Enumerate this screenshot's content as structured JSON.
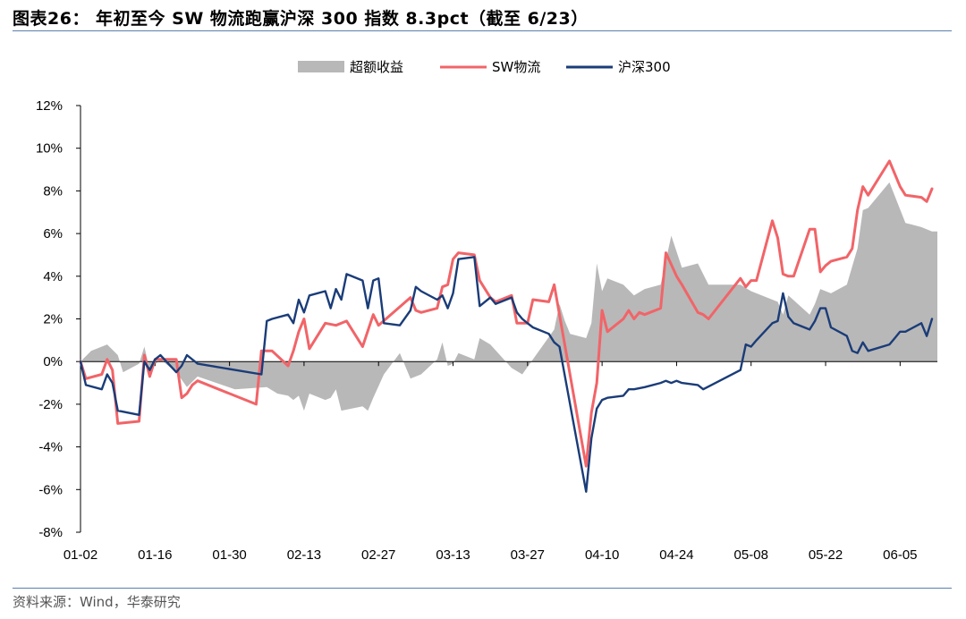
{
  "header": {
    "title": "图表26：  年初至今 SW 物流跑赢沪深 300 指数 8.3pct（截至 6/23）"
  },
  "footer": {
    "source": "资料来源：Wind，华泰研究"
  },
  "colors": {
    "excess": "#b8b8b8",
    "sw_logistics": "#f16468",
    "hs300": "#1a3c78",
    "rule": "#5a7fb0"
  },
  "chart_data": {
    "type": "line",
    "title": "图表26：  年初至今 SW 物流跑赢沪深 300 指数 8.3pct（截至 6/23）",
    "x_tick_labels": [
      "01-02",
      "01-16",
      "01-30",
      "02-13",
      "02-27",
      "03-13",
      "03-27",
      "04-10",
      "04-24",
      "05-08",
      "05-22",
      "06-05"
    ],
    "y_tick_labels": [
      "12%",
      "10%",
      "8%",
      "6%",
      "4%",
      "2%",
      "0%",
      "-2%",
      "-4%",
      "-6%",
      "-8%"
    ],
    "ylim": [
      -8,
      12
    ],
    "y_unit": "%",
    "grid": false,
    "legend_position": "top",
    "legend": [
      "超额收益",
      "SW物流",
      "沪深300"
    ],
    "series": [
      {
        "name": "超额收益",
        "type": "area",
        "points": [
          [
            "01-02",
            0
          ],
          [
            "01-04",
            0.5
          ],
          [
            "01-07",
            0.8
          ],
          [
            "01-09",
            0.3
          ],
          [
            "01-10",
            -0.5
          ],
          [
            "01-13",
            -0.1
          ],
          [
            "01-14",
            0.7
          ],
          [
            "01-15",
            -0.4
          ],
          [
            "01-17",
            0.1
          ],
          [
            "01-20",
            -0.5
          ],
          [
            "01-22",
            -1.2
          ],
          [
            "01-24",
            -0.7
          ],
          [
            "01-31",
            -1.3
          ],
          [
            "02-06",
            -1.2
          ],
          [
            "02-08",
            -1.5
          ],
          [
            "02-10",
            -1.6
          ],
          [
            "02-11",
            -1.8
          ],
          [
            "02-12",
            -1.6
          ],
          [
            "02-13",
            -2.3
          ],
          [
            "02-14",
            -1.5
          ],
          [
            "02-17",
            -1.8
          ],
          [
            "02-18",
            -1.7
          ],
          [
            "02-19",
            -1.3
          ],
          [
            "02-20",
            -2.3
          ],
          [
            "02-24",
            -2.1
          ],
          [
            "02-25",
            -2.3
          ],
          [
            "02-26",
            -1.7
          ],
          [
            "02-28",
            -0.6
          ],
          [
            "03-03",
            0.4
          ],
          [
            "03-05",
            -0.8
          ],
          [
            "03-07",
            -0.6
          ],
          [
            "03-10",
            0.1
          ],
          [
            "03-11",
            0.9
          ],
          [
            "03-12",
            -0.2
          ],
          [
            "03-13",
            -0.1
          ],
          [
            "03-14",
            0.4
          ],
          [
            "03-17",
            0.1
          ],
          [
            "03-18",
            1.1
          ],
          [
            "03-20",
            0.8
          ],
          [
            "03-24",
            -0.3
          ],
          [
            "03-26",
            -0.6
          ],
          [
            "03-28",
            0.1
          ],
          [
            "04-01",
            1.5
          ],
          [
            "04-02",
            2.7
          ],
          [
            "04-03",
            1.9
          ],
          [
            "04-04",
            1.3
          ],
          [
            "04-07",
            1.1
          ],
          [
            "04-08",
            1.8
          ],
          [
            "04-09",
            4.6
          ],
          [
            "04-10",
            3.3
          ],
          [
            "04-11",
            3.9
          ],
          [
            "04-14",
            3.6
          ],
          [
            "04-16",
            3.1
          ],
          [
            "04-18",
            3.4
          ],
          [
            "04-21",
            3.6
          ],
          [
            "04-23",
            5.9
          ],
          [
            "04-25",
            4.4
          ],
          [
            "04-28",
            4.6
          ],
          [
            "04-30",
            3.6
          ],
          [
            "05-06",
            3.6
          ],
          [
            "05-08",
            3.3
          ],
          [
            "05-13",
            2.8
          ],
          [
            "05-14",
            2.2
          ],
          [
            "05-15",
            3.1
          ],
          [
            "05-19",
            2.2
          ],
          [
            "05-20",
            2.7
          ],
          [
            "05-21",
            3.4
          ],
          [
            "05-23",
            3.2
          ],
          [
            "05-26",
            3.6
          ],
          [
            "05-28",
            5.3
          ],
          [
            "05-29",
            7.1
          ],
          [
            "05-30",
            7.2
          ],
          [
            "06-03",
            8.4
          ],
          [
            "06-06",
            6.5
          ],
          [
            "06-09",
            6.3
          ],
          [
            "06-11",
            6.1
          ],
          [
            "06-12",
            6.1
          ]
        ]
      },
      {
        "name": "SW物流",
        "type": "line",
        "points": [
          [
            "01-02",
            0
          ],
          [
            "01-03",
            -0.8
          ],
          [
            "01-06",
            -0.6
          ],
          [
            "01-07",
            0.1
          ],
          [
            "01-08",
            -0.4
          ],
          [
            "01-09",
            -2.9
          ],
          [
            "01-13",
            -2.8
          ],
          [
            "01-14",
            0.3
          ],
          [
            "01-15",
            -0.7
          ],
          [
            "01-16",
            0.1
          ],
          [
            "01-20",
            0.1
          ],
          [
            "01-21",
            -1.7
          ],
          [
            "01-22",
            -1.5
          ],
          [
            "01-23",
            -1.1
          ],
          [
            "01-24",
            -0.9
          ],
          [
            "02-04",
            -2.0
          ],
          [
            "02-05",
            0.5
          ],
          [
            "02-07",
            0.5
          ],
          [
            "02-10",
            -0.2
          ],
          [
            "02-11",
            0.5
          ],
          [
            "02-12",
            1.4
          ],
          [
            "02-13",
            2.0
          ],
          [
            "02-14",
            0.6
          ],
          [
            "02-17",
            1.8
          ],
          [
            "02-19",
            1.7
          ],
          [
            "02-21",
            1.9
          ],
          [
            "02-24",
            0.7
          ],
          [
            "02-26",
            2.2
          ],
          [
            "02-27",
            1.7
          ],
          [
            "03-05",
            3.0
          ],
          [
            "03-06",
            2.4
          ],
          [
            "03-07",
            2.3
          ],
          [
            "03-10",
            2.5
          ],
          [
            "03-11",
            3.5
          ],
          [
            "03-12",
            3.6
          ],
          [
            "03-13",
            4.8
          ],
          [
            "03-14",
            5.1
          ],
          [
            "03-17",
            5.0
          ],
          [
            "03-18",
            3.8
          ],
          [
            "03-20",
            3.0
          ],
          [
            "03-21",
            2.8
          ],
          [
            "03-24",
            3.1
          ],
          [
            "03-25",
            1.8
          ],
          [
            "03-27",
            1.8
          ],
          [
            "03-28",
            2.9
          ],
          [
            "03-31",
            2.8
          ],
          [
            "04-01",
            3.6
          ],
          [
            "04-07",
            -4.9
          ],
          [
            "04-08",
            -2.4
          ],
          [
            "04-09",
            -1.0
          ],
          [
            "04-10",
            2.4
          ],
          [
            "04-11",
            1.4
          ],
          [
            "04-14",
            2.0
          ],
          [
            "04-15",
            2.4
          ],
          [
            "04-16",
            2.0
          ],
          [
            "04-17",
            2.3
          ],
          [
            "04-18",
            2.2
          ],
          [
            "04-21",
            2.5
          ],
          [
            "04-22",
            5.1
          ],
          [
            "04-24",
            4.0
          ],
          [
            "04-25",
            3.6
          ],
          [
            "04-28",
            2.3
          ],
          [
            "04-29",
            2.2
          ],
          [
            "04-30",
            2.0
          ],
          [
            "05-06",
            3.9
          ],
          [
            "05-07",
            3.5
          ],
          [
            "05-08",
            3.8
          ],
          [
            "05-09",
            3.8
          ],
          [
            "05-12",
            6.6
          ],
          [
            "05-13",
            5.8
          ],
          [
            "05-14",
            4.1
          ],
          [
            "05-15",
            4.0
          ],
          [
            "05-16",
            4.0
          ],
          [
            "05-19",
            6.2
          ],
          [
            "05-20",
            6.2
          ],
          [
            "05-21",
            4.2
          ],
          [
            "05-22",
            4.5
          ],
          [
            "05-23",
            4.7
          ],
          [
            "05-26",
            4.9
          ],
          [
            "05-27",
            5.3
          ],
          [
            "05-28",
            7.1
          ],
          [
            "05-29",
            8.2
          ],
          [
            "05-30",
            7.8
          ],
          [
            "06-03",
            9.4
          ],
          [
            "06-05",
            8.2
          ],
          [
            "06-06",
            7.8
          ],
          [
            "06-09",
            7.7
          ],
          [
            "06-10",
            7.5
          ],
          [
            "06-11",
            8.1
          ]
        ]
      },
      {
        "name": "沪深300",
        "type": "line",
        "points": [
          [
            "01-02",
            0
          ],
          [
            "01-03",
            -1.1
          ],
          [
            "01-06",
            -1.3
          ],
          [
            "01-07",
            -0.6
          ],
          [
            "01-08",
            -1.0
          ],
          [
            "01-09",
            -2.3
          ],
          [
            "01-13",
            -2.5
          ],
          [
            "01-14",
            0
          ],
          [
            "01-15",
            -0.4
          ],
          [
            "01-16",
            0.1
          ],
          [
            "01-17",
            0.3
          ],
          [
            "01-20",
            -0.5
          ],
          [
            "01-21",
            -0.2
          ],
          [
            "01-22",
            0.3
          ],
          [
            "01-24",
            -0.1
          ],
          [
            "02-05",
            -0.6
          ],
          [
            "02-06",
            1.9
          ],
          [
            "02-07",
            2.0
          ],
          [
            "02-10",
            2.2
          ],
          [
            "02-11",
            1.8
          ],
          [
            "02-12",
            2.9
          ],
          [
            "02-13",
            2.3
          ],
          [
            "02-14",
            3.1
          ],
          [
            "02-17",
            3.3
          ],
          [
            "02-18",
            2.5
          ],
          [
            "02-19",
            3.4
          ],
          [
            "02-20",
            2.9
          ],
          [
            "02-21",
            4.1
          ],
          [
            "02-24",
            3.8
          ],
          [
            "02-25",
            2.5
          ],
          [
            "02-26",
            3.8
          ],
          [
            "02-27",
            3.9
          ],
          [
            "02-28",
            1.8
          ],
          [
            "03-03",
            1.7
          ],
          [
            "03-05",
            2.4
          ],
          [
            "03-06",
            3.5
          ],
          [
            "03-07",
            3.3
          ],
          [
            "03-10",
            2.9
          ],
          [
            "03-11",
            3.1
          ],
          [
            "03-12",
            2.5
          ],
          [
            "03-13",
            3.2
          ],
          [
            "03-14",
            4.8
          ],
          [
            "03-17",
            4.9
          ],
          [
            "03-18",
            2.6
          ],
          [
            "03-20",
            3.0
          ],
          [
            "03-21",
            2.7
          ],
          [
            "03-24",
            3.0
          ],
          [
            "03-25",
            2.3
          ],
          [
            "03-26",
            2.0
          ],
          [
            "03-27",
            1.8
          ],
          [
            "03-28",
            1.6
          ],
          [
            "03-31",
            1.3
          ],
          [
            "04-01",
            0.9
          ],
          [
            "04-02",
            0.7
          ],
          [
            "04-07",
            -6.1
          ],
          [
            "04-08",
            -3.6
          ],
          [
            "04-09",
            -2.2
          ],
          [
            "04-10",
            -1.8
          ],
          [
            "04-11",
            -1.7
          ],
          [
            "04-14",
            -1.6
          ],
          [
            "04-15",
            -1.3
          ],
          [
            "04-16",
            -1.3
          ],
          [
            "04-18",
            -1.2
          ],
          [
            "04-21",
            -1.0
          ],
          [
            "04-22",
            -0.9
          ],
          [
            "04-23",
            -1.0
          ],
          [
            "04-24",
            -0.9
          ],
          [
            "04-25",
            -1.0
          ],
          [
            "04-28",
            -1.1
          ],
          [
            "04-29",
            -1.3
          ],
          [
            "05-06",
            -0.4
          ],
          [
            "05-07",
            0.8
          ],
          [
            "05-08",
            0.7
          ],
          [
            "05-09",
            1.0
          ],
          [
            "05-12",
            1.8
          ],
          [
            "05-13",
            1.9
          ],
          [
            "05-14",
            3.2
          ],
          [
            "05-15",
            2.1
          ],
          [
            "05-16",
            1.8
          ],
          [
            "05-19",
            1.5
          ],
          [
            "05-20",
            1.9
          ],
          [
            "05-21",
            2.5
          ],
          [
            "05-22",
            2.5
          ],
          [
            "05-23",
            1.6
          ],
          [
            "05-26",
            1.2
          ],
          [
            "05-27",
            0.5
          ],
          [
            "05-28",
            0.4
          ],
          [
            "05-29",
            0.9
          ],
          [
            "05-30",
            0.5
          ],
          [
            "06-03",
            0.8
          ],
          [
            "06-04",
            1.1
          ],
          [
            "06-05",
            1.4
          ],
          [
            "06-06",
            1.4
          ],
          [
            "06-09",
            1.8
          ],
          [
            "06-10",
            1.2
          ],
          [
            "06-11",
            2.0
          ]
        ]
      }
    ]
  }
}
